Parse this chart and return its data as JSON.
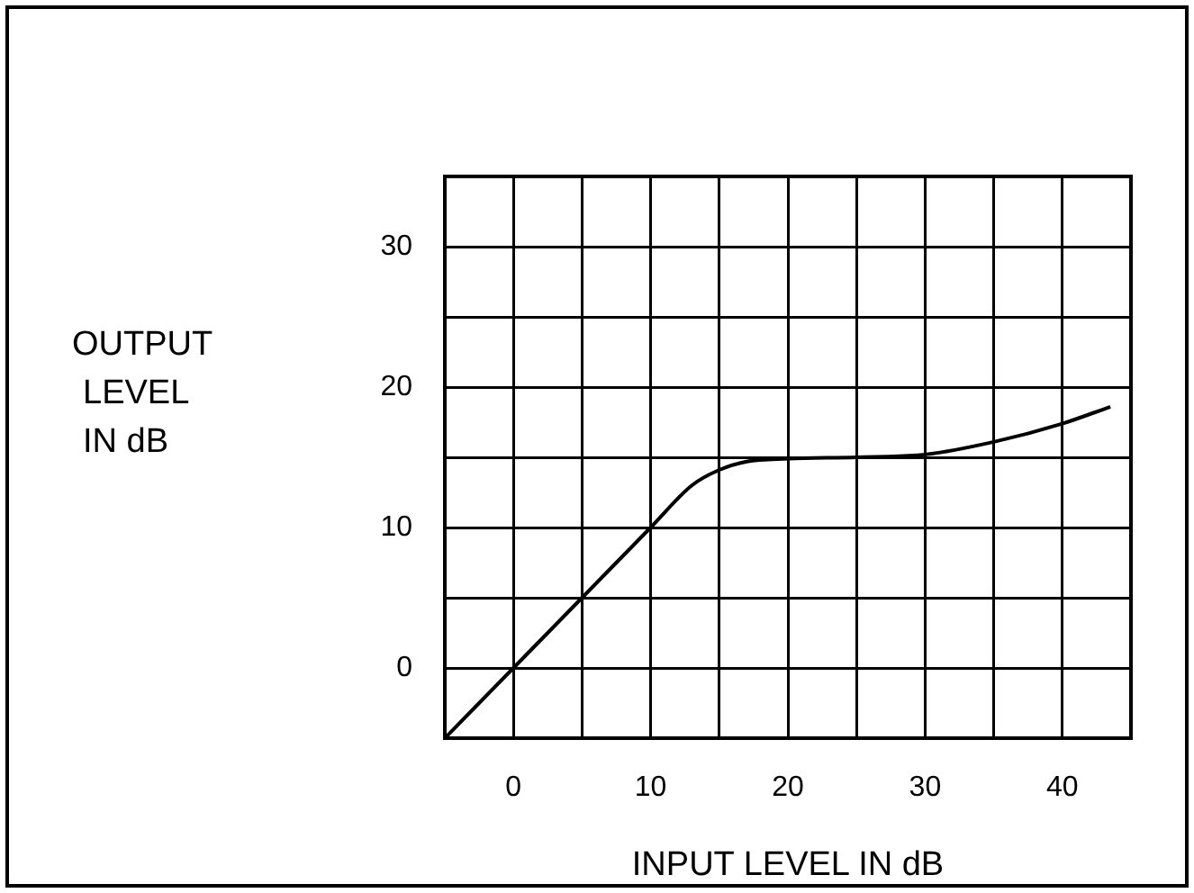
{
  "chart_data": {
    "type": "line",
    "xlabel": "INPUT LEVEL IN dB",
    "ylabel": "OUTPUT\nLEVEL\nIN dB",
    "x": [
      -5,
      0,
      5,
      10,
      13,
      15,
      17,
      20,
      25,
      30,
      35,
      40,
      43.5
    ],
    "series": [
      {
        "color": "#000000",
        "values": [
          -5,
          0,
          5,
          10,
          13,
          14.1,
          14.7,
          14.9,
          15,
          15.2,
          16.1,
          17.4,
          18.6
        ]
      }
    ],
    "xlim": [
      -5,
      45
    ],
    "xticks": [
      0,
      {
        "value": 5,
        "label": null
      },
      10,
      {
        "value": 15,
        "label": null
      },
      20,
      {
        "value": 25,
        "label": null
      },
      30,
      {
        "value": 35,
        "label": null
      },
      40
    ],
    "ylim": [
      -5,
      35
    ],
    "yticks": [
      0,
      {
        "value": 5,
        "label": null
      },
      10,
      {
        "value": 15,
        "label": null
      },
      20,
      {
        "value": 25,
        "label": null
      },
      30
    ],
    "grid": true,
    "legend": false,
    "marker": "none",
    "line_style": "solid"
  }
}
